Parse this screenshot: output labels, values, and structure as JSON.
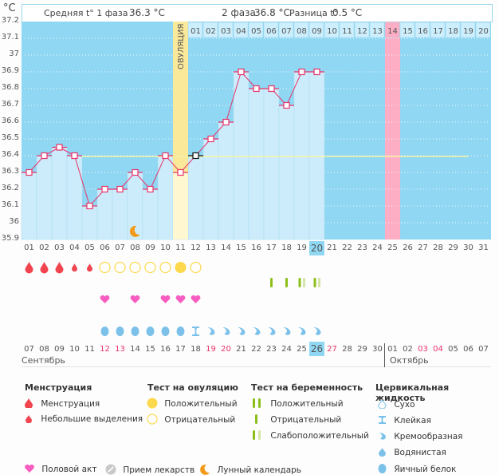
{
  "header": {
    "unit": "°C",
    "phase1_label": "Средняя t° 1 фаза",
    "phase1_value": "36.3 °C",
    "phase2_label": "2 фаза",
    "phase2_value": "36.8 °C",
    "diff_label": "Разница t°",
    "diff_value": "0.5 °C"
  },
  "ovulation_label": "ОВУЛЯЦИЯ",
  "months": {
    "first": "Сентябрь",
    "second": "Октябрь"
  },
  "colors": {
    "chart_bg": "#8fd7f2",
    "bar_fill": "#cdecfb",
    "ovulation": "#fbe99a",
    "menses_highlight": "#fdaec4",
    "temp_line": "#e8336a",
    "coverline": "#f6f3a4",
    "today": "#8fd7f2"
  },
  "chart_data": {
    "type": "line",
    "title": "",
    "ylabel": "°C",
    "ylim": [
      35.9,
      37.2
    ],
    "yticks": [
      "37.2",
      "37.1",
      "37",
      "36.9",
      "36.8",
      "36.7",
      "36.6",
      "36.5",
      "36.4",
      "36.3",
      "36.2",
      "36.1",
      "36",
      "35.9"
    ],
    "cycle_days": [
      "01",
      "02",
      "03",
      "04",
      "05",
      "06",
      "07",
      "08",
      "09",
      "10",
      "11",
      "12",
      "13",
      "14",
      "15",
      "16",
      "17",
      "18",
      "19",
      "20",
      "21",
      "22",
      "23",
      "24",
      "25",
      "26",
      "27",
      "28",
      "29",
      "30",
      "31"
    ],
    "post_ovulation_days": [
      "01",
      "02",
      "03",
      "04",
      "05",
      "06",
      "07",
      "08",
      "09",
      "10",
      "11",
      "12",
      "13",
      "14",
      "15",
      "16",
      "17",
      "18",
      "19",
      "20"
    ],
    "temperatures": [
      36.3,
      36.4,
      36.45,
      36.4,
      36.1,
      36.2,
      36.2,
      36.3,
      36.2,
      36.4,
      36.3,
      36.4,
      36.5,
      36.6,
      36.9,
      36.8,
      36.8,
      36.7,
      36.9,
      36.9
    ],
    "coverline": 36.4,
    "ovulation_day": 11,
    "highlight_day": 25,
    "today_cycle_day": 20,
    "lunar_day": 8,
    "dates": [
      "07",
      "08",
      "09",
      "10",
      "11",
      "12",
      "13",
      "14",
      "15",
      "16",
      "17",
      "18",
      "19",
      "20",
      "21",
      "22",
      "23",
      "24",
      "25",
      "26",
      "27",
      "28",
      "29",
      "30",
      "01",
      "02",
      "03",
      "04",
      "05",
      "06",
      "07"
    ],
    "weekend_dates_idx": [
      5,
      6,
      12,
      13,
      20,
      26,
      27
    ],
    "today_date_idx": 19,
    "month_break_idx": 24,
    "menstruation": {
      "1": "heavy",
      "2": "heavy",
      "3": "heavy",
      "4": "light",
      "5": "light"
    },
    "ovulation_test": {
      "6": "neg",
      "7": "neg",
      "8": "neg",
      "9": "neg",
      "10": "neg",
      "11": "pos",
      "12": "neg"
    },
    "pregnancy_test": {
      "17": "neg",
      "18": "neg",
      "19": "weak",
      "20": "weak"
    },
    "intercourse_days": [
      6,
      8,
      10,
      11,
      12
    ],
    "cervical_fluid": {
      "6": "egg",
      "7": "egg",
      "8": "egg",
      "9": "egg",
      "10": "egg",
      "11": "egg",
      "12": "sticky",
      "13": "creamy",
      "14": "creamy",
      "15": "creamy",
      "16": "creamy",
      "17": "creamy",
      "18": "creamy",
      "19": "creamy",
      "20": "creamy"
    }
  },
  "legend": {
    "menstruation": {
      "title": "Менструация",
      "items": [
        "Менструация",
        "Небольшие выделения"
      ]
    },
    "ovulation_test": {
      "title": "Тест на овуляцию",
      "items": [
        "Положительный",
        "Отрицательный"
      ]
    },
    "pregnancy_test": {
      "title": "Тест на беременность",
      "items": [
        "Положительный",
        "Отрицательный",
        "Слабоположительный"
      ]
    },
    "cervical": {
      "title": "Цервикальная жидкость",
      "items": [
        "Сухо",
        "Клейкая",
        "Кремообразная",
        "Водянистая",
        "Яичный белок"
      ]
    },
    "other": [
      "Половой акт",
      "Прием лекарств",
      "Лунный календарь"
    ]
  }
}
